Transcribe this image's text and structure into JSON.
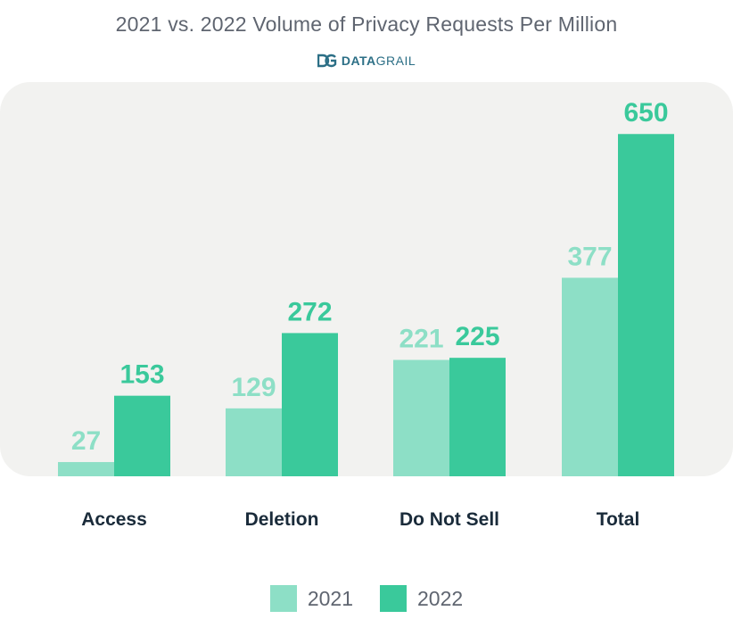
{
  "header": {
    "title": "2021 vs. 2022 Volume of Privacy Requests Per Million",
    "logo_bold": "DATA",
    "logo_light": "GRAIL",
    "logo_icon": "datagrail-logo-icon"
  },
  "colors": {
    "series_2021": "#8ddfc6",
    "series_2022": "#3ac99b",
    "category_label": "#1a2b3a",
    "title": "#5f6570"
  },
  "chart_data": {
    "type": "bar",
    "title": "2021 vs. 2022 Volume of Privacy Requests Per Million",
    "categories": [
      "Access",
      "Deletion",
      "Do Not Sell",
      "Total"
    ],
    "series": [
      {
        "name": "2021",
        "values": [
          27,
          129,
          221,
          377
        ]
      },
      {
        "name": "2022",
        "values": [
          153,
          272,
          225,
          650
        ]
      }
    ],
    "xlabel": "",
    "ylabel": "",
    "ylim": [
      0,
      700
    ],
    "grid": false,
    "legend": "bottom"
  }
}
